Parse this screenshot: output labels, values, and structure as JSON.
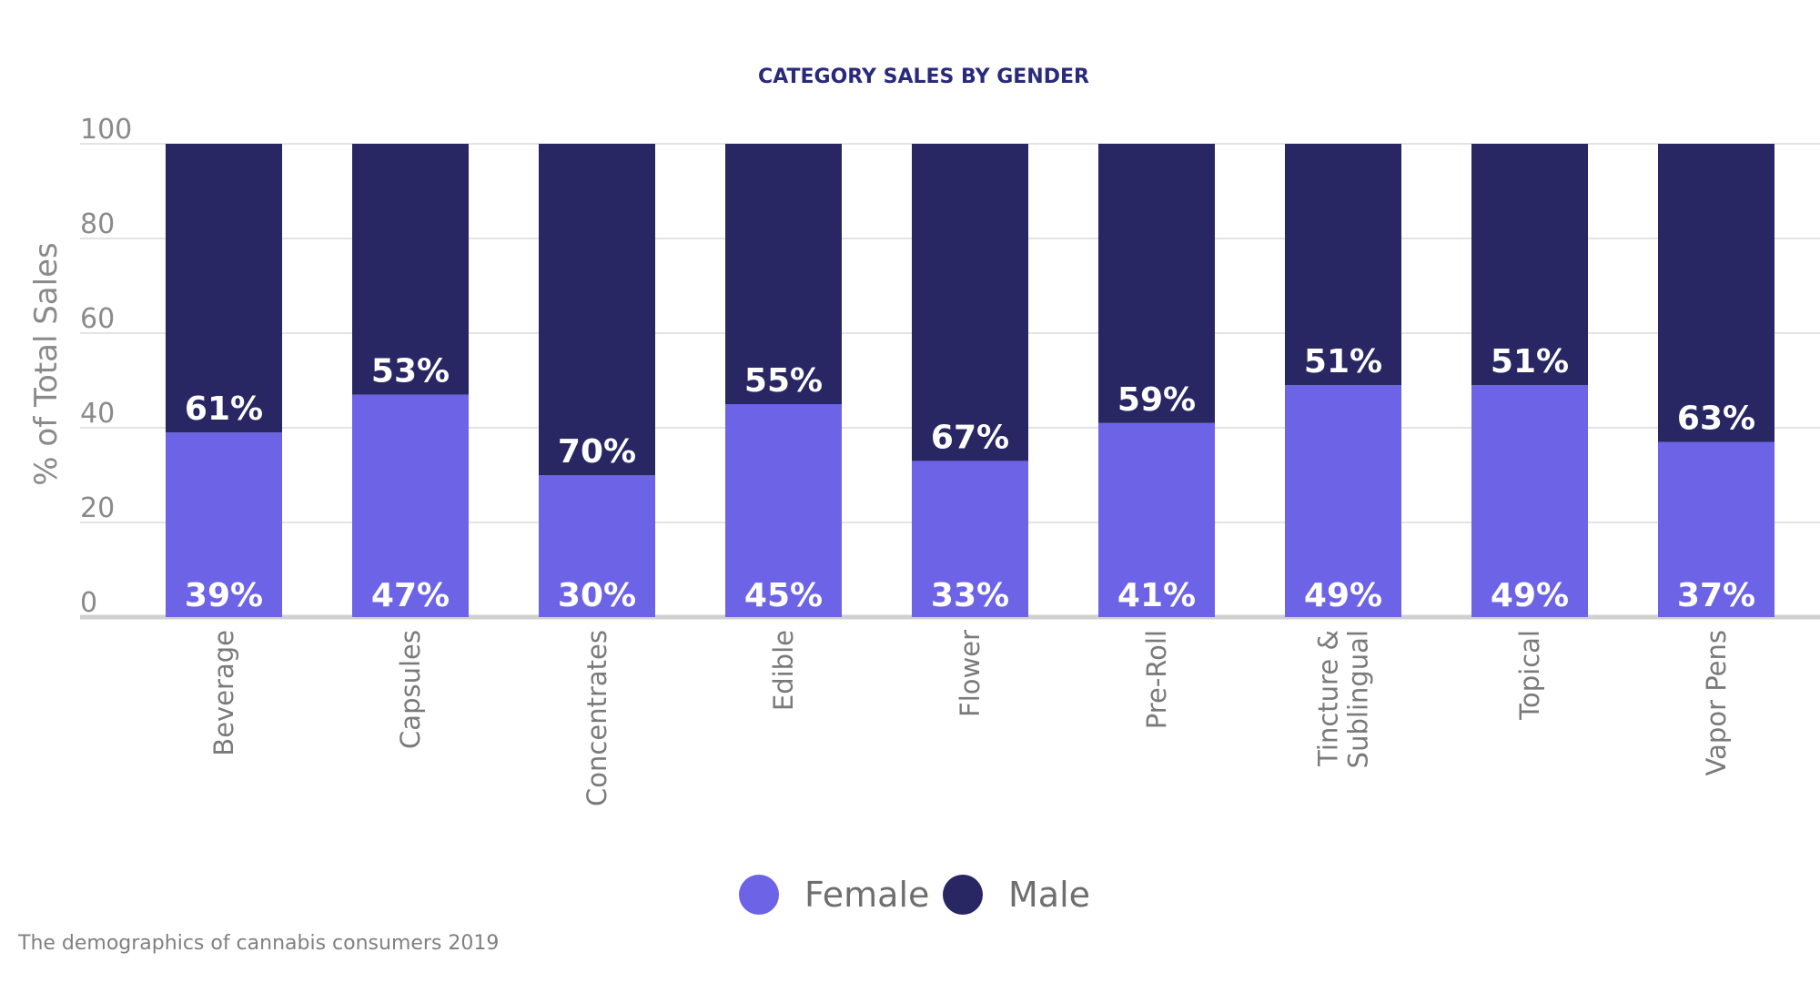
{
  "chart_data": {
    "type": "bar",
    "stacked": true,
    "title": "CATEGORY SALES BY GENDER",
    "ylabel": "% of Total Sales",
    "xlabel": "",
    "ylim": [
      0,
      100
    ],
    "yticks": [
      0,
      20,
      40,
      60,
      80,
      100
    ],
    "grid": true,
    "legend_position": "bottom",
    "categories": [
      "Beverage",
      "Capsules",
      "Concentrates",
      "Edible",
      "Flower",
      "Pre-Roll",
      "Tincture & Sublingual",
      "Topical",
      "Vapor Pens"
    ],
    "category_lines": [
      [
        "Beverage"
      ],
      [
        "Capsules"
      ],
      [
        "Concentrates"
      ],
      [
        "Edible"
      ],
      [
        "Flower"
      ],
      [
        "Pre-Roll"
      ],
      [
        "Tincture &",
        "Sublingual"
      ],
      [
        "Topical"
      ],
      [
        "Vapor Pens"
      ]
    ],
    "series": [
      {
        "name": "Female",
        "color": "#6c63e6",
        "values": [
          39,
          47,
          30,
          45,
          33,
          41,
          49,
          49,
          37
        ],
        "labels": [
          "39%",
          "47%",
          "30%",
          "45%",
          "33%",
          "41%",
          "49%",
          "49%",
          "37%"
        ]
      },
      {
        "name": "Male",
        "color": "#282663",
        "values": [
          61,
          53,
          70,
          55,
          67,
          59,
          51,
          51,
          63
        ],
        "labels": [
          "61%",
          "53%",
          "70%",
          "55%",
          "67%",
          "59%",
          "51%",
          "51%",
          "63%"
        ]
      }
    ]
  },
  "source": "The demographics of cannabis consumers 2019"
}
